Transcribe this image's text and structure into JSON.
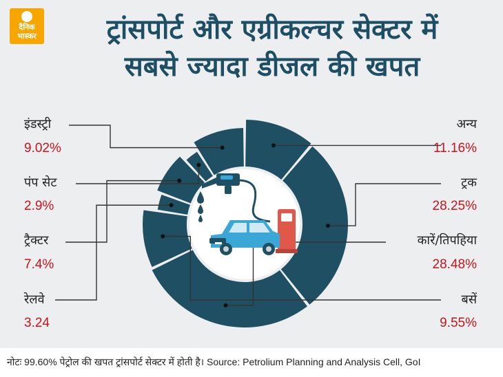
{
  "logo": {
    "line1": "दैनिक",
    "line2": "भास्कर"
  },
  "title": {
    "line1": "ट्रांसपोर्ट और एग्रीकल्चर सेक्टर में",
    "line2": "सबसे ज्यादा डीजल की खपत"
  },
  "chart_data": {
    "type": "pie",
    "style": "donut",
    "segments": [
      {
        "label": "अन्य",
        "value": 11.16,
        "display": "11.16%"
      },
      {
        "label": "ट्रक",
        "value": 28.25,
        "display": "28.25%"
      },
      {
        "label": "कारें/तिपहिया",
        "value": 28.48,
        "display": "28.48%"
      },
      {
        "label": "बसें",
        "value": 9.55,
        "display": "9.55%"
      },
      {
        "label": "रेलवे",
        "value": 3.24,
        "display": "3.24"
      },
      {
        "label": "ट्रैक्टर",
        "value": 7.4,
        "display": "7.4%"
      },
      {
        "label": "पंप सेट",
        "value": 2.9,
        "display": "2.9%"
      },
      {
        "label": "इंडस्ट्री",
        "value": 9.02,
        "display": "9.02%"
      }
    ]
  },
  "colors": {
    "segment": "#1e4f62",
    "title": "#1d4e63",
    "percent": "#c4161c",
    "car": "#3aa7d6",
    "pump": "#e0584a"
  },
  "footer": {
    "note": "नोटः 99.60% पेट्रोल की खपत ट्रांसपोर्ट सेक्टर में होती है। Source: Petrolium Planning and Analysis Cell, GoI"
  }
}
